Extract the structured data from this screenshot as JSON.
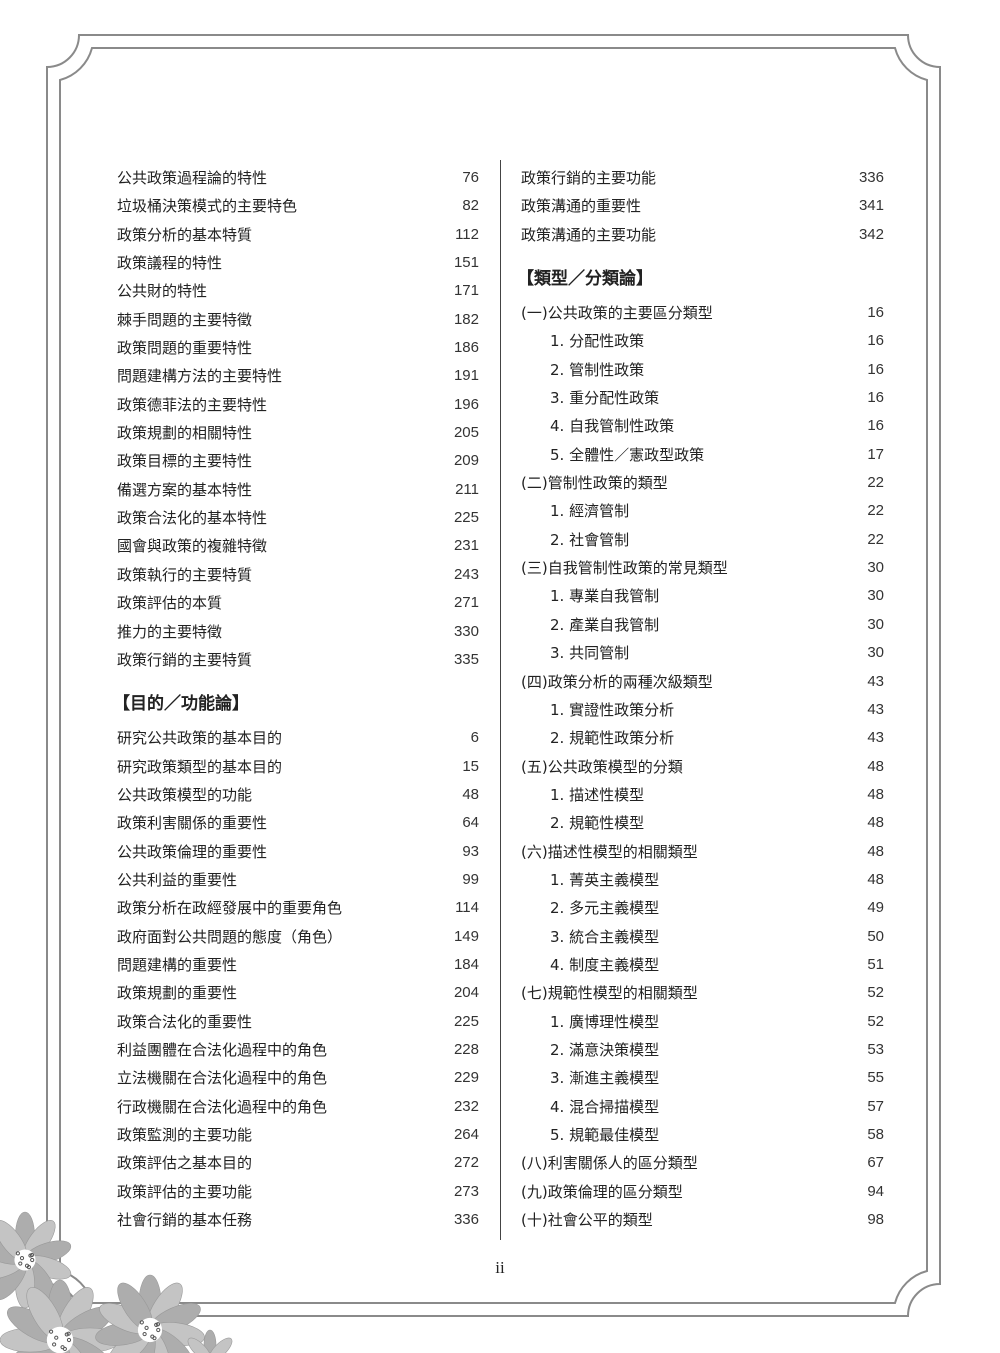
{
  "left_column": [
    {
      "type": "group",
      "items": [
        {
          "text": "公共政策過程論的特性",
          "page": "76"
        },
        {
          "text": "垃圾桶決策模式的主要特色",
          "page": "82"
        },
        {
          "text": "政策分析的基本特質",
          "page": "112"
        },
        {
          "text": "政策議程的特性",
          "page": "151"
        },
        {
          "text": "公共財的特性",
          "page": "171"
        },
        {
          "text": "棘手問題的主要特徵",
          "page": "182"
        },
        {
          "text": "政策問題的重要特性",
          "page": "186"
        },
        {
          "text": "問題建構方法的主要特性",
          "page": "191"
        },
        {
          "text": "政策德菲法的主要特性",
          "page": "196"
        },
        {
          "text": "政策規劃的相關特性",
          "page": "205"
        },
        {
          "text": "政策目標的主要特性",
          "page": "209"
        },
        {
          "text": "備選方案的基本特性",
          "page": "211"
        },
        {
          "text": "政策合法化的基本特性",
          "page": "225"
        },
        {
          "text": "國會與政策的複雜特徵",
          "page": "231"
        },
        {
          "text": "政策執行的主要特質",
          "page": "243"
        },
        {
          "text": "政策評估的本質",
          "page": "271"
        },
        {
          "text": "推力的主要特徵",
          "page": "330"
        },
        {
          "text": "政策行銷的主要特質",
          "page": "335"
        }
      ]
    },
    {
      "type": "heading",
      "text": "【目的／功能論】"
    },
    {
      "type": "group",
      "items": [
        {
          "text": "研究公共政策的基本目的",
          "page": "6"
        },
        {
          "text": "研究政策類型的基本目的",
          "page": "15"
        },
        {
          "text": "公共政策模型的功能",
          "page": "48"
        },
        {
          "text": "政策利害關係的重要性",
          "page": "64"
        },
        {
          "text": "公共政策倫理的重要性",
          "page": "93"
        },
        {
          "text": "公共利益的重要性",
          "page": "99"
        },
        {
          "text": "政策分析在政經發展中的重要角色",
          "page": "114"
        },
        {
          "text": "政府面對公共問題的態度（角色）",
          "page": "149"
        },
        {
          "text": "問題建構的重要性",
          "page": "184"
        },
        {
          "text": "政策規劃的重要性",
          "page": "204"
        },
        {
          "text": "政策合法化的重要性",
          "page": "225"
        },
        {
          "text": "利益團體在合法化過程中的角色",
          "page": "228"
        },
        {
          "text": "立法機關在合法化過程中的角色",
          "page": "229"
        },
        {
          "text": "行政機關在合法化過程中的角色",
          "page": "232"
        },
        {
          "text": "政策監測的主要功能",
          "page": "264"
        },
        {
          "text": "政策評估之基本目的",
          "page": "272"
        },
        {
          "text": "政策評估的主要功能",
          "page": "273"
        },
        {
          "text": "社會行銷的基本任務",
          "page": "336"
        }
      ]
    }
  ],
  "right_column": [
    {
      "type": "group",
      "items": [
        {
          "text": "政策行銷的主要功能",
          "page": "336"
        },
        {
          "text": "政策溝通的重要性",
          "page": "341"
        },
        {
          "text": "政策溝通的主要功能",
          "page": "342"
        }
      ]
    },
    {
      "type": "heading",
      "text": "【類型／分類論】"
    },
    {
      "type": "group",
      "items": [
        {
          "text": "(一)公共政策的主要區分類型",
          "page": "16"
        },
        {
          "text": "1. 分配性政策",
          "page": "16",
          "indent": true
        },
        {
          "text": "2. 管制性政策",
          "page": "16",
          "indent": true
        },
        {
          "text": "3. 重分配性政策",
          "page": "16",
          "indent": true
        },
        {
          "text": "4. 自我管制性政策",
          "page": "16",
          "indent": true
        },
        {
          "text": "5. 全體性／憲政型政策",
          "page": "17",
          "indent": true
        },
        {
          "text": "(二)管制性政策的類型",
          "page": "22"
        },
        {
          "text": "1. 經濟管制",
          "page": "22",
          "indent": true
        },
        {
          "text": "2. 社會管制",
          "page": "22",
          "indent": true
        },
        {
          "text": "(三)自我管制性政策的常見類型",
          "page": "30"
        },
        {
          "text": "1. 專業自我管制",
          "page": "30",
          "indent": true
        },
        {
          "text": "2. 產業自我管制",
          "page": "30",
          "indent": true
        },
        {
          "text": "3. 共同管制",
          "page": "30",
          "indent": true
        },
        {
          "text": "(四)政策分析的兩種次級類型",
          "page": "43"
        },
        {
          "text": "1. 實證性政策分析",
          "page": "43",
          "indent": true
        },
        {
          "text": "2. 規範性政策分析",
          "page": "43",
          "indent": true
        },
        {
          "text": "(五)公共政策模型的分類",
          "page": "48"
        },
        {
          "text": "1. 描述性模型",
          "page": "48",
          "indent": true
        },
        {
          "text": "2. 規範性模型",
          "page": "48",
          "indent": true
        },
        {
          "text": "(六)描述性模型的相關類型",
          "page": "48"
        },
        {
          "text": "1. 菁英主義模型",
          "page": "48",
          "indent": true
        },
        {
          "text": "2. 多元主義模型",
          "page": "49",
          "indent": true
        },
        {
          "text": "3. 統合主義模型",
          "page": "50",
          "indent": true
        },
        {
          "text": "4. 制度主義模型",
          "page": "51",
          "indent": true
        },
        {
          "text": "(七)規範性模型的相關類型",
          "page": "52"
        },
        {
          "text": "1. 廣博理性模型",
          "page": "52",
          "indent": true
        },
        {
          "text": "2. 滿意決策模型",
          "page": "53",
          "indent": true
        },
        {
          "text": "3. 漸進主義模型",
          "page": "55",
          "indent": true
        },
        {
          "text": "4. 混合掃描模型",
          "page": "57",
          "indent": true
        },
        {
          "text": "5. 規範最佳模型",
          "page": "58",
          "indent": true
        },
        {
          "text": "(八)利害關係人的區分類型",
          "page": "67"
        },
        {
          "text": "(九)政策倫理的區分類型",
          "page": "94"
        },
        {
          "text": "(十)社會公平的類型",
          "page": "98"
        }
      ]
    }
  ],
  "page_number": "ii",
  "colors": {
    "frame": "#8a8a8a",
    "flower": "#b5b5b5",
    "text": "#222222"
  }
}
